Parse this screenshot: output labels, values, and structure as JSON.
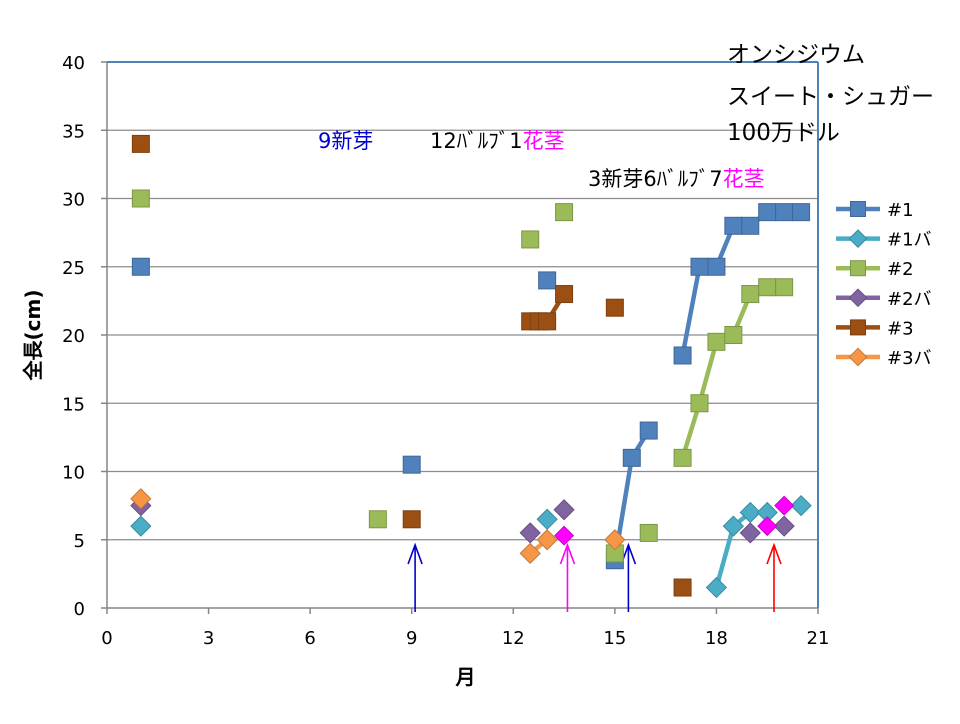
{
  "chart_data": {
    "type": "line",
    "xlabel": "月",
    "ylabel": "全長(cm)",
    "xlim": [
      0,
      21
    ],
    "ylim": [
      0,
      40
    ],
    "x_ticks": [
      0,
      3,
      6,
      9,
      12,
      15,
      18,
      21
    ],
    "y_ticks": [
      0,
      5,
      10,
      15,
      20,
      25,
      30,
      35,
      40
    ],
    "grid": "horizontal",
    "legend_position": "right",
    "title_lines": [
      "オンシジウム",
      "スイート・シュガー",
      "100万ドル"
    ],
    "annotations": [
      {
        "parts": [
          {
            "text": "9新芽",
            "color": "#0000cc"
          }
        ]
      },
      {
        "parts": [
          {
            "text": "12ﾊﾞﾙﾌﾞ1",
            "color": "#000000"
          },
          {
            "text": "花茎",
            "color": "#ff00ff"
          }
        ]
      },
      {
        "parts": [
          {
            "text": "3新芽6ﾊﾞﾙﾌﾞ7",
            "color": "#000000"
          },
          {
            "text": "花茎",
            "color": "#ff00ff"
          }
        ]
      }
    ],
    "event_arrows": [
      {
        "x": 9.1,
        "color": "#0000cc"
      },
      {
        "x": 13.6,
        "color": "#ff00ff"
      },
      {
        "x": 15.4,
        "color": "#0000cc"
      },
      {
        "x": 19.7,
        "color": "#ff0000"
      }
    ],
    "series": [
      {
        "name": "#1",
        "color": "#4f81bd",
        "marker": "square",
        "points": [
          [
            1,
            25
          ],
          [
            9,
            10.5
          ],
          [
            13,
            24
          ],
          [
            15,
            3.5
          ],
          [
            15.5,
            11
          ],
          [
            16,
            13
          ],
          [
            17,
            18.5
          ],
          [
            17.5,
            25
          ],
          [
            18,
            25
          ],
          [
            18.5,
            28
          ],
          [
            19,
            28
          ],
          [
            19.5,
            29
          ],
          [
            20,
            29
          ],
          [
            20.5,
            29
          ]
        ],
        "connected": [
          [
            3,
            4
          ],
          [
            4,
            5
          ],
          [
            6,
            7
          ],
          [
            7,
            8
          ],
          [
            8,
            9
          ],
          [
            9,
            10
          ],
          [
            10,
            11
          ],
          [
            11,
            12
          ],
          [
            12,
            13
          ]
        ]
      },
      {
        "name": "#1バ",
        "color": "#4bacc6",
        "marker": "diamond",
        "points": [
          [
            1,
            6
          ],
          [
            13,
            6.5
          ],
          [
            18,
            1.5
          ],
          [
            18.5,
            6
          ],
          [
            19,
            7
          ],
          [
            19.5,
            7
          ],
          [
            20.5,
            7.5
          ]
        ],
        "connected": [
          [
            2,
            3
          ],
          [
            3,
            4
          ]
        ]
      },
      {
        "name": "#2",
        "color": "#9bbb59",
        "marker": "square",
        "points": [
          [
            1,
            30
          ],
          [
            8,
            6.5
          ],
          [
            12.5,
            27
          ],
          [
            13.5,
            29
          ],
          [
            15,
            4
          ],
          [
            16,
            5.5
          ],
          [
            17,
            11
          ],
          [
            17.5,
            15
          ],
          [
            18,
            19.5
          ],
          [
            18.5,
            20
          ],
          [
            19,
            23
          ],
          [
            19.5,
            23.5
          ],
          [
            20,
            23.5
          ]
        ],
        "connected": [
          [
            6,
            7
          ],
          [
            7,
            8
          ],
          [
            8,
            9
          ],
          [
            9,
            10
          ],
          [
            10,
            11
          ],
          [
            11,
            12
          ]
        ]
      },
      {
        "name": "#2バ",
        "color": "#8064a2",
        "marker": "diamond",
        "points": [
          [
            1,
            7.5
          ],
          [
            12.5,
            5.5
          ],
          [
            13.5,
            7.2
          ],
          [
            19,
            5.5
          ],
          [
            20,
            6
          ]
        ],
        "connected": []
      },
      {
        "name": "#3",
        "color": "#9c4f12",
        "marker": "square",
        "points": [
          [
            1,
            34
          ],
          [
            9,
            6.5
          ],
          [
            12.5,
            21
          ],
          [
            12.75,
            21
          ],
          [
            13,
            21
          ],
          [
            13.5,
            23
          ],
          [
            15,
            22
          ],
          [
            17,
            1.5
          ]
        ],
        "connected": [
          [
            2,
            3
          ],
          [
            3,
            4
          ],
          [
            4,
            5
          ]
        ]
      },
      {
        "name": "#3バ",
        "color": "#f79646",
        "marker": "diamond",
        "points": [
          [
            1,
            8
          ],
          [
            12.5,
            4
          ],
          [
            13,
            5
          ],
          [
            15,
            5
          ]
        ],
        "connected": [
          [
            1,
            2
          ]
        ]
      }
    ],
    "highlight_points": [
      {
        "x": 13.5,
        "y": 5.3,
        "color": "#ff00ff"
      },
      {
        "x": 19.5,
        "y": 6,
        "color": "#ff00ff"
      },
      {
        "x": 20,
        "y": 7.5,
        "color": "#ff00ff"
      }
    ]
  }
}
